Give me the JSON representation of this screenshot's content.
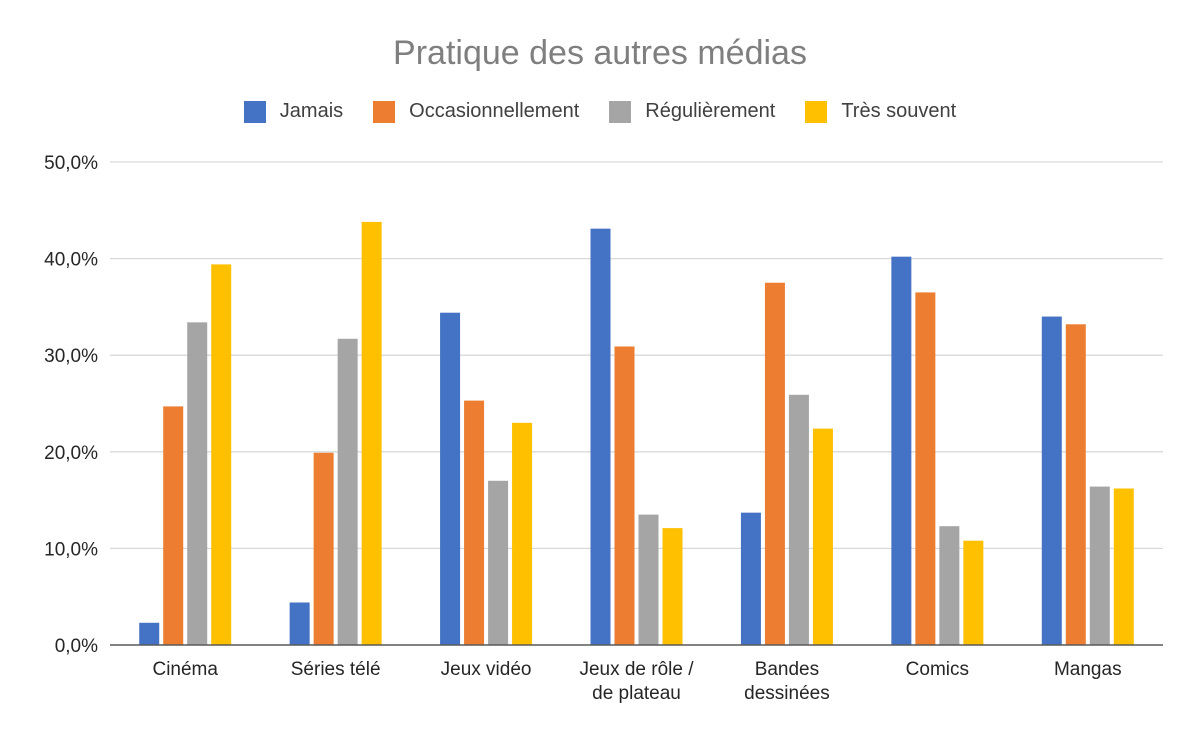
{
  "chart_data": {
    "type": "bar",
    "title": "Pratique des autres médias",
    "xlabel": "",
    "ylabel": "",
    "ylim": [
      0,
      50
    ],
    "yticks": [
      "0,0%",
      "10,0%",
      "20,0%",
      "30,0%",
      "40,0%",
      "50,0%"
    ],
    "grid": true,
    "legend_position": "top",
    "categories": [
      [
        "Cinéma"
      ],
      [
        "Séries télé"
      ],
      [
        "Jeux vidéo"
      ],
      [
        "Jeux de rôle /",
        "de plateau"
      ],
      [
        "Bandes",
        "dessinées"
      ],
      [
        "Comics"
      ],
      [
        "Mangas"
      ]
    ],
    "series": [
      {
        "name": "Jamais",
        "color": "#4472c4",
        "values": [
          2.3,
          4.4,
          34.4,
          43.1,
          13.7,
          40.2,
          34.0
        ]
      },
      {
        "name": "Occasionnellement",
        "color": "#ed7d31",
        "values": [
          24.7,
          19.9,
          25.3,
          30.9,
          37.5,
          36.5,
          33.2
        ]
      },
      {
        "name": "Régulièrement",
        "color": "#a5a5a5",
        "values": [
          33.4,
          31.7,
          17.0,
          13.5,
          25.9,
          12.3,
          16.4
        ]
      },
      {
        "name": "Très souvent",
        "color": "#ffc000",
        "values": [
          39.4,
          43.8,
          23.0,
          12.1,
          22.4,
          10.8,
          16.2
        ]
      }
    ]
  }
}
